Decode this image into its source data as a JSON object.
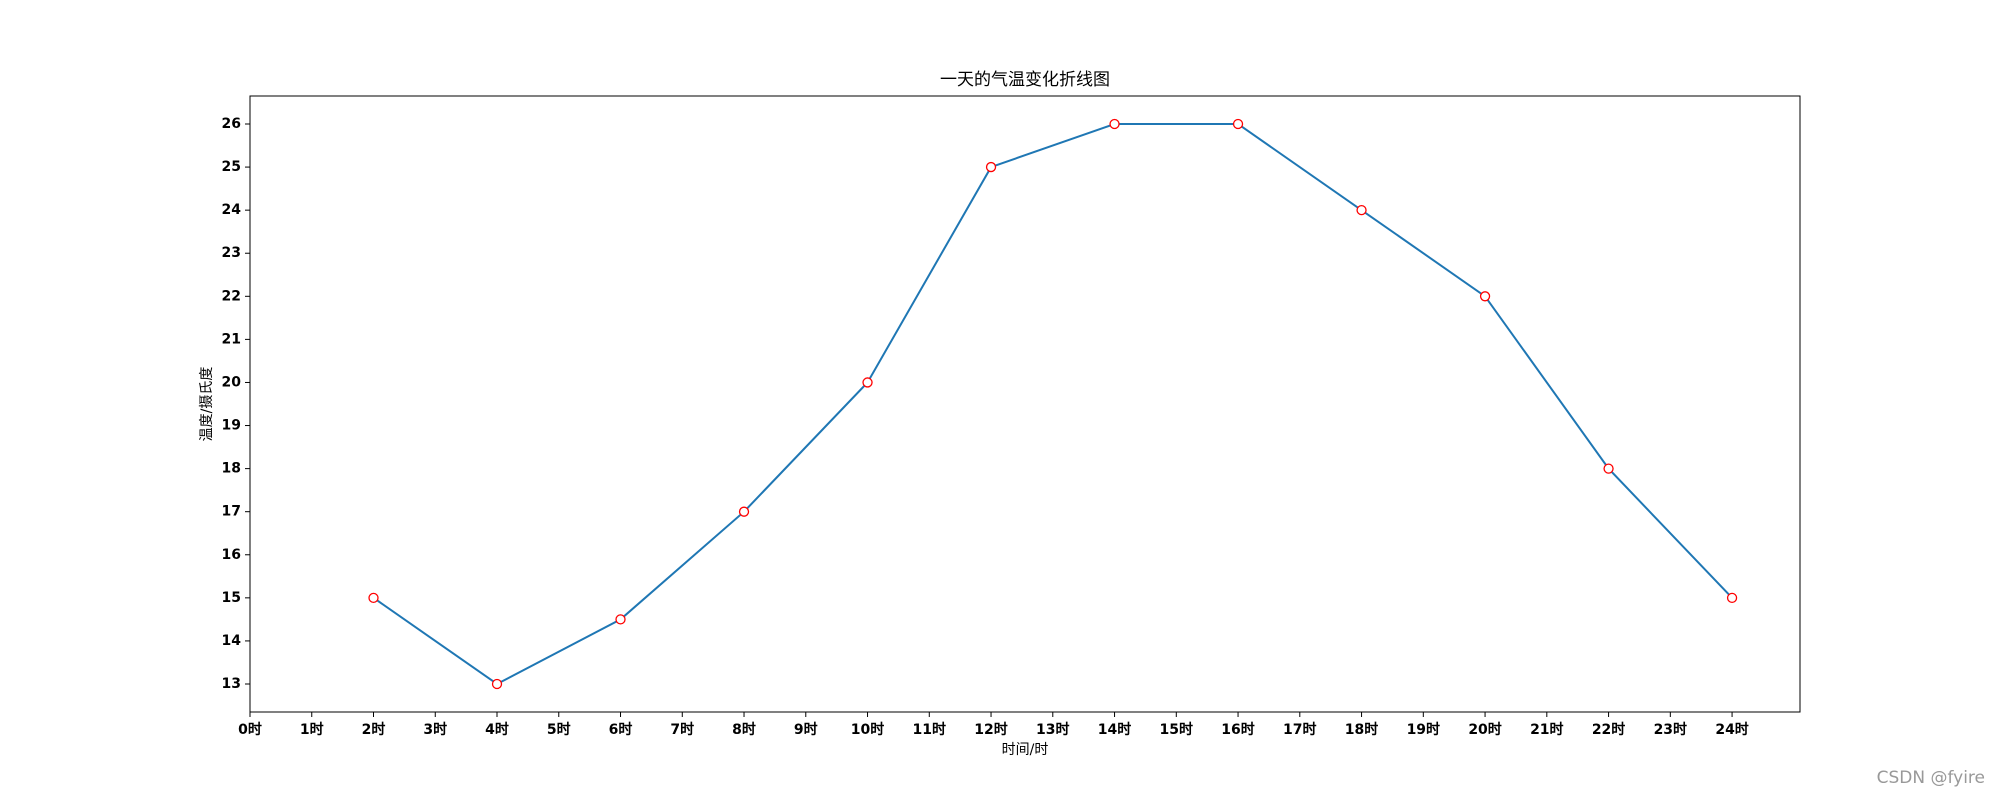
{
  "chart_data": {
    "type": "line",
    "title": "一天的气温变化折线图",
    "x_label": "时间/时",
    "y_label": "温度/摄氏度",
    "x": [
      2,
      4,
      6,
      8,
      10,
      12,
      14,
      16,
      18,
      20,
      22,
      24
    ],
    "values": [
      15,
      13,
      14.5,
      17,
      20,
      25,
      26,
      26,
      24,
      22,
      18,
      15
    ],
    "color": "#1f77b4",
    "marker_edge_color": "#ff0000",
    "marker_face_color": "#ffffff",
    "xlim": [
      0,
      25.1
    ],
    "ylim": [
      12.35,
      26.65
    ],
    "xticks": [
      {
        "value": 0,
        "label": "0时"
      },
      {
        "value": 1,
        "label": "1时"
      },
      {
        "value": 2,
        "label": "2时"
      },
      {
        "value": 3,
        "label": "3时"
      },
      {
        "value": 4,
        "label": "4时"
      },
      {
        "value": 5,
        "label": "5时"
      },
      {
        "value": 6,
        "label": "6时"
      },
      {
        "value": 7,
        "label": "7时"
      },
      {
        "value": 8,
        "label": "8时"
      },
      {
        "value": 9,
        "label": "9时"
      },
      {
        "value": 10,
        "label": "10时"
      },
      {
        "value": 11,
        "label": "11时"
      },
      {
        "value": 12,
        "label": "12时"
      },
      {
        "value": 13,
        "label": "13时"
      },
      {
        "value": 14,
        "label": "14时"
      },
      {
        "value": 15,
        "label": "15时"
      },
      {
        "value": 16,
        "label": "16时"
      },
      {
        "value": 17,
        "label": "17时"
      },
      {
        "value": 18,
        "label": "18时"
      },
      {
        "value": 19,
        "label": "19时"
      },
      {
        "value": 20,
        "label": "20时"
      },
      {
        "value": 21,
        "label": "21时"
      },
      {
        "value": 22,
        "label": "22时"
      },
      {
        "value": 23,
        "label": "23时"
      },
      {
        "value": 24,
        "label": "24时"
      }
    ],
    "yticks": [
      13,
      14,
      15,
      16,
      17,
      18,
      19,
      20,
      21,
      22,
      23,
      24,
      25,
      26
    ],
    "grid": false
  },
  "watermark": "CSDN @fyire"
}
